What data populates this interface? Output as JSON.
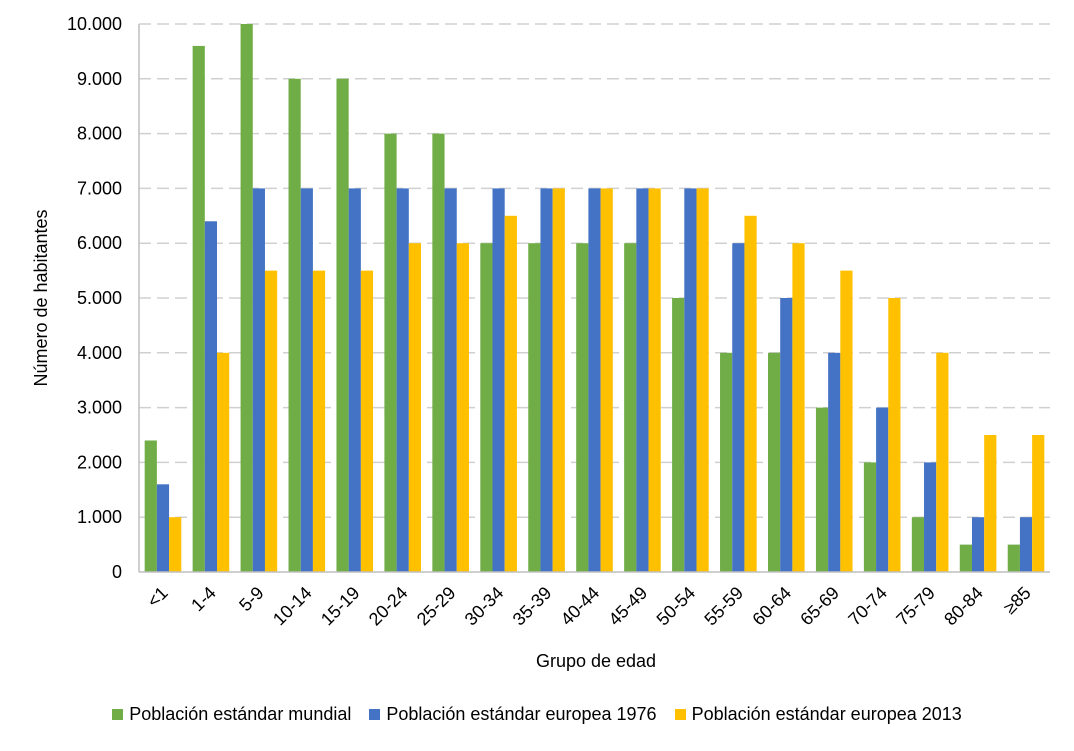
{
  "chart_data": {
    "type": "bar",
    "title": "",
    "xlabel": "Grupo de edad",
    "ylabel": "Número de habitantes",
    "ylim": [
      0,
      10000
    ],
    "yticks": [
      "0",
      "1.000",
      "2.000",
      "3.000",
      "4.000",
      "5.000",
      "6.000",
      "7.000",
      "8.000",
      "9.000",
      "10.000"
    ],
    "grid": true,
    "legend_position": "bottom",
    "categories": [
      "<1",
      "1-4",
      "5-9",
      "10-14",
      "15-19",
      "20-24",
      "25-29",
      "30-34",
      "35-39",
      "40-44",
      "45-49",
      "50-54",
      "55-59",
      "60-64",
      "65-69",
      "70-74",
      "75-79",
      "80-84",
      "≥85"
    ],
    "series": [
      {
        "name": "Población estándar mundial",
        "color": "#70ad47",
        "values": [
          2400,
          9600,
          10000,
          9000,
          9000,
          8000,
          8000,
          6000,
          6000,
          6000,
          6000,
          5000,
          4000,
          4000,
          3000,
          2000,
          1000,
          500,
          500
        ]
      },
      {
        "name": "Población estándar europea 1976",
        "color": "#4472c4",
        "values": [
          1600,
          6400,
          7000,
          7000,
          7000,
          7000,
          7000,
          7000,
          7000,
          7000,
          7000,
          7000,
          6000,
          5000,
          4000,
          3000,
          2000,
          1000,
          1000
        ]
      },
      {
        "name": "Población estándar europea 2013",
        "color": "#ffc000",
        "values": [
          1000,
          4000,
          5500,
          5500,
          5500,
          6000,
          6000,
          6500,
          7000,
          7000,
          7000,
          7000,
          6500,
          6000,
          5500,
          5000,
          4000,
          2500,
          2500
        ]
      }
    ]
  }
}
